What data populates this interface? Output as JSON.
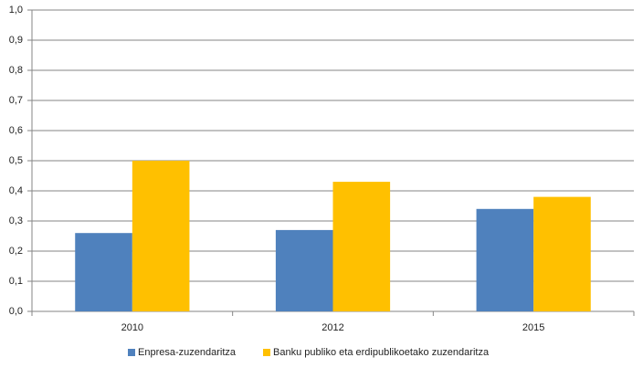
{
  "chart_data": {
    "type": "bar",
    "categories": [
      "2010",
      "2012",
      "2015"
    ],
    "series": [
      {
        "name": "Enpresa-zuzendaritza",
        "color": "#4f81bd",
        "values": [
          0.26,
          0.27,
          0.34
        ]
      },
      {
        "name": "Banku publiko eta erdipublikoetako zuzendaritza",
        "color": "#ffc000",
        "values": [
          0.5,
          0.43,
          0.38
        ]
      }
    ],
    "ylim": [
      0,
      1
    ],
    "yticks": [
      {
        "value": 0,
        "label": "0,0"
      },
      {
        "value": 0.1,
        "label": "0,1"
      },
      {
        "value": 0.2,
        "label": "0,2"
      },
      {
        "value": 0.3,
        "label": "0,3"
      },
      {
        "value": 0.4,
        "label": "0,4"
      },
      {
        "value": 0.5,
        "label": "0,5"
      },
      {
        "value": 0.6,
        "label": "0,6"
      },
      {
        "value": 0.7,
        "label": "0,7"
      },
      {
        "value": 0.8,
        "label": "0,8"
      },
      {
        "value": 0.9,
        "label": "0,9"
      },
      {
        "value": 1,
        "label": "1,0"
      }
    ],
    "grid": true,
    "legend": "bottom"
  }
}
